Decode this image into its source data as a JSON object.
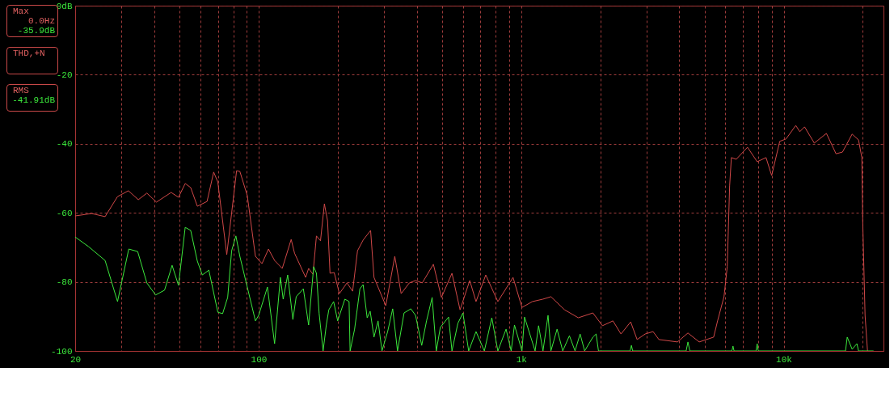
{
  "chart_data": {
    "type": "line",
    "xlim": [
      20,
      24000
    ],
    "ylim": [
      -100,
      0
    ],
    "log": "x",
    "grid": true,
    "xticks": [
      20,
      {
        "value": 30,
        "label": null
      },
      {
        "value": 40,
        "label": null
      },
      {
        "value": 50,
        "label": null
      },
      {
        "value": 60,
        "label": null
      },
      {
        "value": 70,
        "label": null
      },
      {
        "value": 80,
        "label": null
      },
      {
        "value": 90,
        "label": null
      },
      100,
      {
        "value": 200,
        "label": null
      },
      {
        "value": 300,
        "label": null
      },
      {
        "value": 400,
        "label": null
      },
      {
        "value": 500,
        "label": null
      },
      {
        "value": 600,
        "label": null
      },
      {
        "value": 700,
        "label": null
      },
      {
        "value": 800,
        "label": null
      },
      {
        "value": 900,
        "label": null
      },
      {
        "value": 1000,
        "label": "1k"
      },
      {
        "value": 2000,
        "label": null
      },
      {
        "value": 3000,
        "label": null
      },
      {
        "value": 4000,
        "label": null
      },
      {
        "value": 5000,
        "label": null
      },
      {
        "value": 6000,
        "label": null
      },
      {
        "value": 7000,
        "label": null
      },
      {
        "value": 8000,
        "label": null
      },
      {
        "value": 9000,
        "label": null
      },
      {
        "value": 10000,
        "label": "10k"
      },
      {
        "value": 20000,
        "label": null
      }
    ],
    "yticks": [
      {
        "value": 0,
        "label": "0dB"
      },
      -20,
      -40,
      -60,
      -80,
      -100
    ],
    "annotations": [
      "Max\n0.0Hz\n-35.9dB",
      "THD,+N",
      "RMS\n-41.91dB"
    ],
    "series": [
      {
        "color": "#d04848",
        "x": [
          20,
          23.1,
          26,
          29,
          31.9,
          34.8,
          37.5,
          40.8,
          46.4,
          49.5,
          52.5,
          55.1,
          58.4,
          63.6,
          67.4,
          69.9,
          75.6,
          82.4,
          84.8,
          90.5,
          97.2,
          103,
          109,
          115,
          123,
          133,
          137,
          151,
          155,
          161,
          166,
          172,
          178,
          183,
          187,
          194,
          203,
          217,
          228,
          238,
          250,
          267,
          275,
          305,
          330,
          349,
          375,
          396,
          420,
          463,
          497,
          545,
          585,
          637,
          673,
          733,
          815,
          931,
          1007,
          1104,
          1211,
          1298,
          1464,
          1651,
          1876,
          2040,
          2237,
          2400,
          2613,
          2765,
          2966,
          3180,
          3348,
          3939,
          4318,
          4767,
          5410,
          5600,
          5925,
          6095,
          6225,
          6320,
          6595,
          7280,
          7925,
          8565,
          9000,
          9660,
          10210,
          11120,
          11520,
          12010,
          13080,
          14550,
          15830,
          16750,
          18230,
          19280,
          19850,
          20000,
          20420,
          20860
        ],
        "values": [
          -60.9,
          -60.2,
          -61.1,
          -55.3,
          -53.6,
          -56.2,
          -54.3,
          -56.9,
          -54.1,
          -55.5,
          -51.5,
          -52.7,
          -58.1,
          -56.7,
          -48.2,
          -51.1,
          -72.1,
          -47.8,
          -48,
          -55,
          -72.6,
          -74.7,
          -70.5,
          -73.8,
          -76.1,
          -67.7,
          -71.7,
          -78.7,
          -76.1,
          -77.8,
          -66.7,
          -68.1,
          -57.4,
          -62.3,
          -77.5,
          -77.3,
          -83.4,
          -80.3,
          -82.7,
          -71,
          -67.9,
          -65.1,
          -78.7,
          -86.9,
          -72.6,
          -83.4,
          -80.3,
          -79.6,
          -80.3,
          -74.9,
          -84.5,
          -77.5,
          -88.1,
          -79.6,
          -85.7,
          -78,
          -85.7,
          -78.7,
          -87.4,
          -85.7,
          -85,
          -84.3,
          -88.1,
          -90.4,
          -89,
          -92.7,
          -91.3,
          -95.1,
          -91.6,
          -96.7,
          -95.1,
          -94.4,
          -96.7,
          -97.4,
          -94.8,
          -97.4,
          -96,
          -91.3,
          -84.3,
          -75.6,
          -52.2,
          -44,
          -44.5,
          -41,
          -45.2,
          -44,
          -49.2,
          -39.3,
          -38.6,
          -34.7,
          -36.5,
          -35.1,
          -39.8,
          -37,
          -42.9,
          -42.4,
          -37.2,
          -38.9,
          -44,
          -62.3,
          -89.7,
          -100
        ]
      },
      {
        "color": "#3ce83c",
        "x": [
          20,
          22.5,
          26,
          29,
          32,
          34.6,
          37.5,
          40.5,
          43.8,
          46.8,
          49.5,
          52.5,
          55.1,
          58.4,
          61,
          64.6,
          69.9,
          72.9,
          76.2,
          78.9,
          81.9,
          84.8,
          97.2,
          100,
          108,
          115,
          121,
          124,
          129,
          135,
          139,
          148,
          155,
          162,
          166,
          170,
          176,
          181,
          185,
          193,
          200,
          213,
          221,
          223,
          232,
          243,
          250,
          259,
          266,
          275,
          285,
          295,
          310,
          324,
          338,
          358,
          380,
          396,
          418,
          436,
          458,
          475,
          492,
          529,
          545,
          574,
          600,
          631,
          673,
          724,
          773,
          815,
          876,
          916,
          943,
          1007,
          1030,
          1130,
          1165,
          1211,
          1266,
          1298,
          1370,
          1440,
          1527,
          1604,
          1677,
          1745,
          1876,
          1930,
          1970,
          2600,
          2630,
          2660,
          4250,
          4318,
          4390,
          6350,
          6410,
          6470,
          7850,
          7925,
          8000,
          17200,
          17460,
          18230,
          19010,
          19280,
          22000
        ],
        "values": [
          -67,
          -69.8,
          -73.8,
          -85.7,
          -70.5,
          -71.2,
          -80.3,
          -83.8,
          -82.4,
          -75.2,
          -81,
          -64.2,
          -65.1,
          -74,
          -78,
          -76.6,
          -88.8,
          -89.2,
          -84.5,
          -71,
          -66.7,
          -72.6,
          -91.3,
          -89.7,
          -81.5,
          -97.9,
          -78.7,
          -85,
          -78,
          -90.9,
          -84.3,
          -82,
          -92.5,
          -75.6,
          -77.5,
          -89.2,
          -100,
          -92.5,
          -88.1,
          -85.7,
          -91.3,
          -85,
          -85.7,
          -100,
          -93.7,
          -82,
          -80.8,
          -90.4,
          -88.5,
          -96,
          -91.3,
          -100,
          -94.4,
          -87.8,
          -100,
          -89,
          -87.8,
          -89.7,
          -98.4,
          -91.3,
          -84.5,
          -100,
          -93.2,
          -90.2,
          -100,
          -92,
          -89,
          -100,
          -94.4,
          -100,
          -90.4,
          -100,
          -93.7,
          -100,
          -92.5,
          -100,
          -90.2,
          -100,
          -92.7,
          -100,
          -89.7,
          -100,
          -93.7,
          -100,
          -95.6,
          -100,
          -95.1,
          -100,
          -96,
          -95.1,
          -100,
          -100,
          -98.4,
          -100,
          -100,
          -97.4,
          -100,
          -100,
          -98.6,
          -100,
          -100,
          -97.9,
          -100,
          -100,
          -96,
          -99.5,
          -97.9,
          -100,
          -100
        ]
      }
    ]
  }
}
